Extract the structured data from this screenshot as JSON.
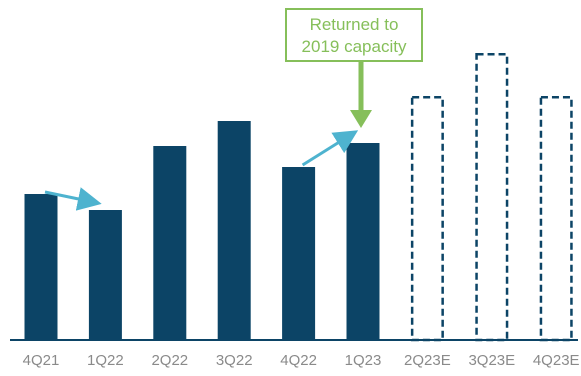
{
  "chart_data": {
    "type": "bar",
    "title": "",
    "xlabel": "",
    "ylabel": "",
    "categories": [
      "4Q21",
      "1Q22",
      "2Q22",
      "3Q22",
      "4Q22",
      "1Q23",
      "2Q23E",
      "3Q23E",
      "4Q23E"
    ],
    "values": [
      146,
      130,
      194,
      219,
      173,
      197,
      244,
      287,
      244
    ],
    "estimated": [
      false,
      false,
      false,
      false,
      false,
      false,
      true,
      true,
      true
    ],
    "ylim": [
      0,
      300
    ],
    "grid": false,
    "legend": "none",
    "colors": {
      "actual_fill": "#0c4466",
      "estimate_stroke": "#0c4466",
      "trend_arrow": "#4eb3cf",
      "callout": "#86bf5a",
      "axis": "#0c4466",
      "tick_text": "#8a8a8a"
    },
    "trend_arrows": [
      {
        "from": "4Q21",
        "to": "1Q22"
      },
      {
        "from": "4Q22",
        "to": "1Q23"
      }
    ],
    "annotation": {
      "lines": [
        "Returned to",
        "2019 capacity"
      ],
      "target": "1Q23"
    }
  }
}
